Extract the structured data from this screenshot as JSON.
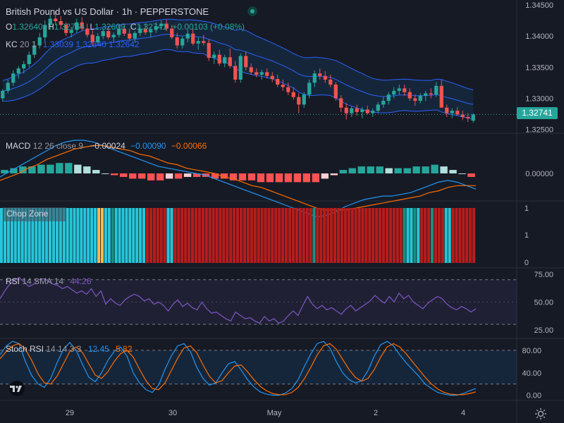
{
  "header": {
    "title": "British Pound vs US Dollar · 1h · PEPPERSTONE",
    "ohlc": {
      "o_label": "O",
      "o": "1.32640",
      "h_label": "H",
      "h": "1.32764",
      "l_label": "L",
      "l": "1.32609",
      "c_label": "C",
      "c": "1.32741",
      "change": "+0.00103 (+0.08%)"
    }
  },
  "indicators": {
    "kc": {
      "name": "KC",
      "params": "20 1",
      "upper": "1.33039",
      "middle": "1.32840",
      "lower": "1.32642"
    },
    "macd": {
      "name": "MACD",
      "params": "12 26 close 9",
      "hist": "−0.00024",
      "macd": "−0.00090",
      "signal": "−0.00066"
    },
    "chop": {
      "name": "Chop Zone"
    },
    "rsi": {
      "name": "RSI",
      "params": "14 SMA 14",
      "value": "44.26"
    },
    "stoch": {
      "name": "Stoch RSI",
      "params": "14 14 3 3",
      "k": "12.45",
      "d": "5.82"
    }
  },
  "price_tag": "1.32741",
  "colors": {
    "bg": "#161a25",
    "up": "#26a69a",
    "down": "#ef5350",
    "kc": "#2962ff",
    "macd": "#2196f3",
    "signal": "#ff6d00",
    "rsi": "#7e57c2",
    "chop_red": "#b71c1c",
    "chop_cyan": "#26c6da",
    "chop_teal": "#1b8f7d",
    "chop_orange": "#ffb74d"
  },
  "chart_data": [
    {
      "type": "candlestick",
      "title": "British Pound vs US Dollar · 1h · PEPPERSTONE",
      "ylim": [
        1.3245,
        1.3458
      ],
      "y_ticks": [
        "1.34500",
        "1.34000",
        "1.33500",
        "1.33000",
        "1.32500"
      ],
      "x_ticks": [
        "29",
        "30",
        "May",
        "2",
        "4"
      ],
      "last": 1.32741,
      "ohlc_bars": [
        [
          1.33,
          1.3315,
          1.3295,
          1.3312
        ],
        [
          1.3312,
          1.333,
          1.3308,
          1.3325
        ],
        [
          1.3325,
          1.3345,
          1.332,
          1.334
        ],
        [
          1.334,
          1.3352,
          1.3332,
          1.3348
        ],
        [
          1.3348,
          1.336,
          1.334,
          1.3355
        ],
        [
          1.3355,
          1.3375,
          1.335,
          1.337
        ],
        [
          1.337,
          1.3392,
          1.3365,
          1.3385
        ],
        [
          1.3385,
          1.3405,
          1.338,
          1.3398
        ],
        [
          1.3398,
          1.3425,
          1.3392,
          1.3418
        ],
        [
          1.3418,
          1.3435,
          1.341,
          1.3428
        ],
        [
          1.3428,
          1.344,
          1.3418,
          1.3424
        ],
        [
          1.3424,
          1.3432,
          1.3412,
          1.3418
        ],
        [
          1.3418,
          1.3422,
          1.34,
          1.3405
        ],
        [
          1.3405,
          1.3415,
          1.3398,
          1.341
        ],
        [
          1.341,
          1.3428,
          1.3405,
          1.3422
        ],
        [
          1.3422,
          1.343,
          1.3408,
          1.3412
        ],
        [
          1.3412,
          1.342,
          1.3398,
          1.3402
        ],
        [
          1.3402,
          1.341,
          1.3385,
          1.339
        ],
        [
          1.339,
          1.3405,
          1.3386,
          1.34
        ],
        [
          1.34,
          1.3412,
          1.3395,
          1.3408
        ],
        [
          1.3408,
          1.3415,
          1.3395,
          1.3398
        ],
        [
          1.3398,
          1.3406,
          1.339,
          1.3402
        ],
        [
          1.3402,
          1.3418,
          1.3398,
          1.3412
        ],
        [
          1.3412,
          1.342,
          1.34,
          1.3404
        ],
        [
          1.3404,
          1.3412,
          1.3392,
          1.3396
        ],
        [
          1.3396,
          1.3408,
          1.339,
          1.3405
        ],
        [
          1.3405,
          1.3418,
          1.34,
          1.3412
        ],
        [
          1.3412,
          1.342,
          1.3402,
          1.3406
        ],
        [
          1.3406,
          1.3415,
          1.3398,
          1.341
        ],
        [
          1.341,
          1.3422,
          1.3405,
          1.3416
        ],
        [
          1.3416,
          1.3425,
          1.341,
          1.342
        ],
        [
          1.342,
          1.3426,
          1.3408,
          1.3412
        ],
        [
          1.3412,
          1.3418,
          1.3395,
          1.3398
        ],
        [
          1.3398,
          1.3405,
          1.338,
          1.3385
        ],
        [
          1.3385,
          1.34,
          1.338,
          1.3396
        ],
        [
          1.3396,
          1.341,
          1.339,
          1.3404
        ],
        [
          1.3404,
          1.3412,
          1.3385,
          1.3388
        ],
        [
          1.3388,
          1.3398,
          1.3378,
          1.3392
        ],
        [
          1.3392,
          1.3402,
          1.3385,
          1.3389
        ],
        [
          1.3389,
          1.3395,
          1.336,
          1.3365
        ],
        [
          1.3365,
          1.3375,
          1.3355,
          1.337
        ],
        [
          1.337,
          1.3378,
          1.3352,
          1.3356
        ],
        [
          1.3356,
          1.337,
          1.335,
          1.3366
        ],
        [
          1.3366,
          1.338,
          1.3348,
          1.3352
        ],
        [
          1.3352,
          1.336,
          1.3325,
          1.333
        ],
        [
          1.333,
          1.3372,
          1.3325,
          1.3368
        ],
        [
          1.3368,
          1.3375,
          1.3345,
          1.335
        ],
        [
          1.335,
          1.3356,
          1.3338,
          1.3342
        ],
        [
          1.3342,
          1.3348,
          1.3334,
          1.3338
        ],
        [
          1.3338,
          1.3346,
          1.333,
          1.3342
        ],
        [
          1.3342,
          1.3348,
          1.3332,
          1.3336
        ],
        [
          1.3336,
          1.3342,
          1.3326,
          1.3331
        ],
        [
          1.3331,
          1.3338,
          1.3318,
          1.3322
        ],
        [
          1.3322,
          1.333,
          1.3312,
          1.3318
        ],
        [
          1.3318,
          1.3325,
          1.3305,
          1.331
        ],
        [
          1.331,
          1.3318,
          1.3298,
          1.3302
        ],
        [
          1.3302,
          1.3308,
          1.3276,
          1.329
        ],
        [
          1.329,
          1.331,
          1.3285,
          1.3306
        ],
        [
          1.3306,
          1.333,
          1.33,
          1.3325
        ],
        [
          1.3325,
          1.3345,
          1.3318,
          1.334
        ],
        [
          1.334,
          1.3348,
          1.333,
          1.3336
        ],
        [
          1.3336,
          1.3344,
          1.3325,
          1.333
        ],
        [
          1.333,
          1.3338,
          1.3318,
          1.3322
        ],
        [
          1.3322,
          1.3326,
          1.3296,
          1.33
        ],
        [
          1.33,
          1.3305,
          1.3278,
          1.3285
        ],
        [
          1.3285,
          1.3292,
          1.3266,
          1.3276
        ],
        [
          1.3276,
          1.3288,
          1.327,
          1.3284
        ],
        [
          1.3284,
          1.329,
          1.3272,
          1.3278
        ],
        [
          1.3278,
          1.3286,
          1.3268,
          1.3282
        ],
        [
          1.3282,
          1.3288,
          1.3274,
          1.3276
        ],
        [
          1.3276,
          1.3284,
          1.327,
          1.328
        ],
        [
          1.328,
          1.3294,
          1.3276,
          1.329
        ],
        [
          1.329,
          1.3302,
          1.3285,
          1.3296
        ],
        [
          1.3296,
          1.331,
          1.329,
          1.3306
        ],
        [
          1.3306,
          1.3318,
          1.33,
          1.3312
        ],
        [
          1.3312,
          1.3322,
          1.3306,
          1.3316
        ],
        [
          1.3316,
          1.3322,
          1.3304,
          1.331
        ],
        [
          1.331,
          1.3316,
          1.3296,
          1.33
        ],
        [
          1.33,
          1.3306,
          1.3288,
          1.3296
        ],
        [
          1.3296,
          1.3308,
          1.3292,
          1.3304
        ],
        [
          1.3304,
          1.3312,
          1.3296,
          1.3308
        ],
        [
          1.3308,
          1.3316,
          1.33,
          1.3306
        ],
        [
          1.3306,
          1.3326,
          1.3302,
          1.332
        ],
        [
          1.332,
          1.333,
          1.33,
          1.3285
        ],
        [
          1.3285,
          1.329,
          1.327,
          1.3276
        ],
        [
          1.3276,
          1.3284,
          1.3268,
          1.328
        ],
        [
          1.328,
          1.3286,
          1.3272,
          1.3274
        ],
        [
          1.3274,
          1.328,
          1.3265,
          1.327
        ],
        [
          1.327,
          1.3276,
          1.3262,
          1.3268
        ],
        [
          1.3264,
          1.3276,
          1.3261,
          1.3274
        ]
      ]
    },
    {
      "type": "bar",
      "title": "MACD 12 26 close 9",
      "ylabel_tick": "0.00000",
      "series": [
        {
          "name": "macd",
          "values": [
            -0.0002,
            0.0001,
            0.0004,
            0.0007,
            0.001,
            0.0013,
            0.0016,
            0.0018,
            0.0019,
            0.0019,
            0.0018,
            0.0016,
            0.0014,
            0.0012,
            0.001,
            0.0008,
            0.0006,
            0.0004,
            0.0003,
            0.0002,
            0.0001,
            0.0,
            -0.0001,
            -0.0003,
            -0.0005,
            -0.0007,
            -0.0009,
            -0.0011,
            -0.0013,
            -0.0015,
            -0.0017,
            -0.0019,
            -0.0021,
            -0.0023,
            -0.0025,
            -0.0024,
            -0.0022,
            -0.0019,
            -0.0017,
            -0.0015,
            -0.0014,
            -0.0013,
            -0.0013,
            -0.0012,
            -0.0011,
            -0.0009,
            -0.0007,
            -0.0005,
            -0.0004,
            -0.0005,
            -0.0007,
            -0.0009
          ]
        },
        {
          "name": "signal",
          "values": [
            -0.0004,
            -0.0002,
            0.0,
            0.0003,
            0.0005,
            0.0008,
            0.001,
            0.0012,
            0.0014,
            0.0015,
            0.0016,
            0.0016,
            0.0015,
            0.0014,
            0.0013,
            0.0011,
            0.001,
            0.0008,
            0.0006,
            0.0005,
            0.0003,
            0.0002,
            0.0001,
            0.0,
            -0.0002,
            -0.0003,
            -0.0005,
            -0.0007,
            -0.0008,
            -0.001,
            -0.0012,
            -0.0014,
            -0.0016,
            -0.0018,
            -0.002,
            -0.0021,
            -0.0021,
            -0.0021,
            -0.002,
            -0.0019,
            -0.0018,
            -0.0017,
            -0.0016,
            -0.0015,
            -0.0014,
            -0.0013,
            -0.0011,
            -0.001,
            -0.0008,
            -0.0007,
            -0.0007,
            -0.0007
          ]
        }
      ],
      "histogram": [
        0.0002,
        0.0003,
        0.0004,
        0.0004,
        0.0005,
        0.0005,
        0.0006,
        0.0006,
        0.0005,
        0.0004,
        0.0002,
        0.0,
        -0.0001,
        -0.0002,
        -0.0003,
        -0.0003,
        -0.0004,
        -0.0004,
        -0.0003,
        -0.0003,
        -0.0002,
        -0.0002,
        -0.0002,
        -0.0003,
        -0.0003,
        -0.0004,
        -0.0004,
        -0.0004,
        -0.0005,
        -0.0005,
        -0.0005,
        -0.0005,
        -0.0005,
        -0.0005,
        -0.0005,
        -0.0003,
        -0.0001,
        0.0002,
        0.0003,
        0.0004,
        0.0004,
        0.0004,
        0.0003,
        0.0003,
        0.0003,
        0.0004,
        0.0004,
        0.0005,
        0.0004,
        0.0002,
        0.0,
        -0.0002
      ]
    },
    {
      "type": "bar",
      "title": "Chop Zone",
      "y_ticks": [
        "1",
        "1",
        "0"
      ],
      "zones": [
        "c",
        "c",
        "c",
        "c",
        "c",
        "c",
        "c",
        "c",
        "c",
        "c",
        "c",
        "c",
        "c",
        "c",
        "c",
        "c",
        "c",
        "c",
        "c",
        "c",
        "c",
        "c",
        "c",
        "c",
        "c",
        "c",
        "c",
        "c",
        "o",
        "o",
        "c",
        "c",
        "t",
        "c",
        "c",
        "c",
        "c",
        "c",
        "c",
        "c",
        "c",
        "c",
        "r",
        "r",
        "r",
        "r",
        "r",
        "r",
        "c",
        "c",
        "r",
        "r",
        "r",
        "r",
        "r",
        "r",
        "r",
        "r",
        "r",
        "r",
        "r",
        "r",
        "r",
        "r",
        "r",
        "r",
        "r",
        "r",
        "r",
        "r",
        "r",
        "r",
        "r",
        "r",
        "r",
        "r",
        "r",
        "r",
        "r",
        "r",
        "r",
        "r",
        "r",
        "r",
        "r",
        "r",
        "r",
        "r",
        "r",
        "r",
        "t",
        "r",
        "r",
        "r",
        "r",
        "r",
        "r",
        "r",
        "r",
        "r",
        "r",
        "r",
        "r",
        "r",
        "r",
        "r",
        "r",
        "r",
        "r",
        "r",
        "r",
        "r",
        "r",
        "r",
        "r",
        "r",
        "t",
        "c",
        "c",
        "t",
        "c",
        "r",
        "r",
        "r",
        "t",
        "r",
        "r",
        "r",
        "c",
        "c",
        "r",
        "r",
        "r",
        "r",
        "r",
        "r",
        "r"
      ]
    },
    {
      "type": "line",
      "title": "RSI 14 SMA 14",
      "ylim": [
        18,
        80
      ],
      "y_ticks": [
        "75.00",
        "50.00",
        "25.00"
      ],
      "bands": [
        70,
        30
      ],
      "values": [
        53,
        60,
        66,
        70,
        72,
        68,
        64,
        66,
        70,
        71,
        69,
        66,
        65,
        62,
        64,
        61,
        58,
        60,
        57,
        62,
        55,
        60,
        48,
        53,
        49,
        47,
        52,
        55,
        57,
        55,
        51,
        53,
        48,
        50,
        47,
        42,
        48,
        52,
        46,
        49,
        45,
        43,
        50,
        44,
        40,
        41,
        38,
        35,
        33,
        41,
        38,
        35,
        36,
        33,
        31,
        37,
        33,
        35,
        31,
        33,
        38,
        42,
        38,
        47,
        55,
        48,
        44,
        47,
        43,
        45,
        42,
        39,
        44,
        47,
        42,
        45,
        48,
        51,
        56,
        52,
        49,
        55,
        50,
        58,
        53,
        56,
        50,
        47,
        44,
        49,
        52,
        55,
        53,
        48,
        45,
        43,
        46,
        44,
        41,
        44
      ]
    },
    {
      "type": "line",
      "title": "Stoch RSI 14 14 3 3",
      "ylim": [
        -8,
        100
      ],
      "y_ticks": [
        "80.00",
        "40.00",
        "0.00"
      ],
      "bands": [
        80,
        20
      ],
      "series": [
        {
          "name": "k",
          "values": [
            72,
            88,
            96,
            92,
            60,
            35,
            20,
            14,
            30,
            58,
            82,
            94,
            80,
            55,
            32,
            24,
            40,
            62,
            78,
            86,
            70,
            40,
            22,
            10,
            5,
            18,
            46,
            70,
            88,
            92,
            78,
            50,
            30,
            18,
            22,
            40,
            56,
            60,
            45,
            28,
            15,
            6,
            2,
            0,
            0,
            4,
            12,
            28,
            52,
            74,
            92,
            96,
            84,
            60,
            40,
            28,
            22,
            26,
            44,
            70,
            90,
            96,
            88,
            72,
            58,
            46,
            34,
            20,
            12,
            5,
            2,
            0,
            0,
            3,
            8,
            12
          ]
        },
        {
          "name": "d",
          "values": [
            65,
            78,
            88,
            92,
            82,
            62,
            38,
            22,
            20,
            34,
            56,
            78,
            86,
            76,
            56,
            36,
            30,
            42,
            60,
            74,
            80,
            68,
            46,
            26,
            12,
            10,
            22,
            44,
            66,
            84,
            88,
            76,
            54,
            34,
            22,
            26,
            40,
            52,
            54,
            42,
            28,
            16,
            8,
            3,
            1,
            1,
            5,
            14,
            30,
            50,
            72,
            88,
            92,
            82,
            64,
            46,
            32,
            25,
            30,
            46,
            68,
            86,
            92,
            86,
            74,
            60,
            46,
            32,
            20,
            11,
            5,
            2,
            1,
            1,
            3,
            6
          ]
        }
      ]
    }
  ]
}
